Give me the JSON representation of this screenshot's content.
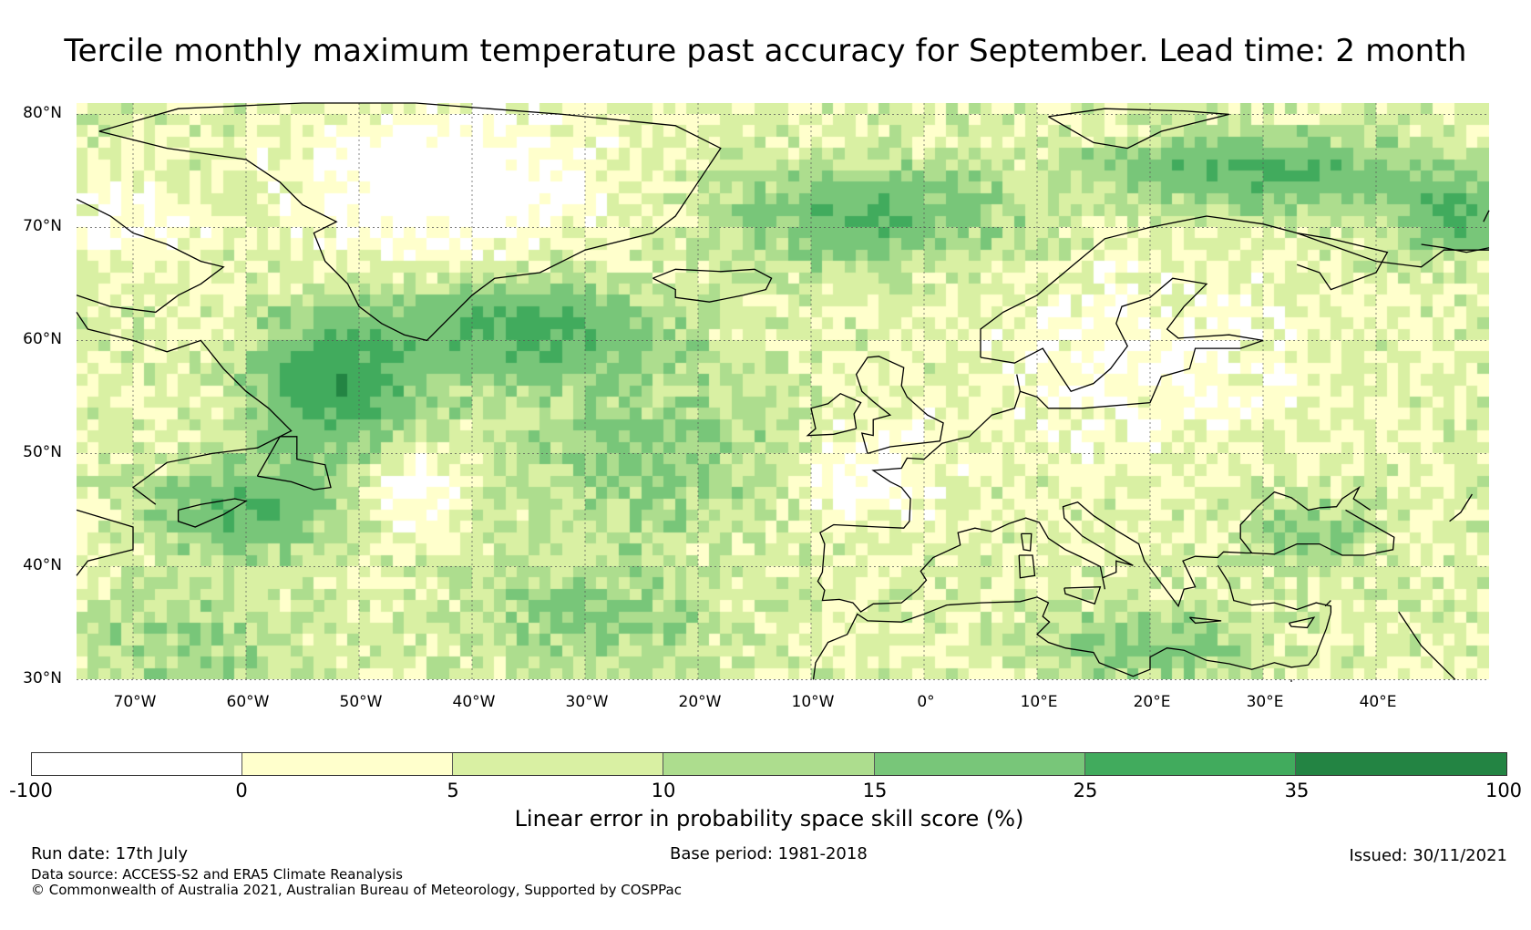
{
  "title": "Tercile monthly maximum temperature past accuracy for September. Lead time: 2 month",
  "map": {
    "lat_labels": [
      "80°N",
      "70°N",
      "60°N",
      "50°N",
      "40°N",
      "30°N"
    ],
    "lon_labels": [
      "70°W",
      "60°W",
      "50°W",
      "40°W",
      "30°W",
      "20°W",
      "10°W",
      "0°",
      "10°E",
      "20°E",
      "30°E",
      "40°E"
    ],
    "extent": {
      "lon_min": -75,
      "lon_max": 50,
      "lat_min": 30,
      "lat_max": 81
    },
    "colors": {
      "ocean_outline": "#000000",
      "gridline": "#555555"
    }
  },
  "colorbar": {
    "label": "Linear error in probability space skill score (%)",
    "ticks": [
      "-100",
      "0",
      "5",
      "10",
      "15",
      "25",
      "35",
      "100"
    ],
    "bins": [
      {
        "from": -100,
        "to": 0,
        "color": "#ffffff"
      },
      {
        "from": 0,
        "to": 5,
        "color": "#ffffcc"
      },
      {
        "from": 5,
        "to": 10,
        "color": "#d9f0a3"
      },
      {
        "from": 10,
        "to": 15,
        "color": "#addd8e"
      },
      {
        "from": 15,
        "to": 25,
        "color": "#78c679"
      },
      {
        "from": 25,
        "to": 35,
        "color": "#41ab5d"
      },
      {
        "from": 35,
        "to": 100,
        "color": "#238443"
      }
    ]
  },
  "footer": {
    "run_date": "Run date: 17th July",
    "base_period": "Base period: 1981-2018",
    "issued": "Issued: 30/11/2021",
    "data_source": "Data source: ACCESS-S2 and ERA5 Climate Reanalysis",
    "copyright": "© Commonwealth of Australia 2021, Australian Bureau of Meteorology, Supported by COSPPac"
  }
}
